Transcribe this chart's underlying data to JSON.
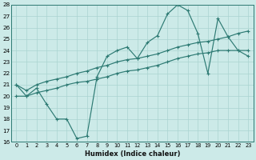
{
  "xlabel": "Humidex (Indice chaleur)",
  "xlim": [
    -0.5,
    23.5
  ],
  "ylim": [
    16,
    28
  ],
  "yticks": [
    16,
    17,
    18,
    19,
    20,
    21,
    22,
    23,
    24,
    25,
    26,
    27,
    28
  ],
  "xticks": [
    0,
    1,
    2,
    3,
    4,
    5,
    6,
    7,
    8,
    9,
    10,
    11,
    12,
    13,
    14,
    15,
    16,
    17,
    18,
    19,
    20,
    21,
    22,
    23
  ],
  "bg_color": "#cceae8",
  "line_color": "#2d7a73",
  "grid_color": "#aad4d0",
  "series_max": [
    21.0,
    20.0,
    20.7,
    19.3,
    18.0,
    18.0,
    16.3,
    16.5,
    21.7,
    23.5,
    24.0,
    24.3,
    23.3,
    24.7,
    25.3,
    27.2,
    28.0,
    27.5,
    25.5,
    22.0,
    26.8,
    25.2,
    24.0,
    23.5
  ],
  "series_mean": [
    21.0,
    20.5,
    21.0,
    21.3,
    21.5,
    21.7,
    22.0,
    22.2,
    22.5,
    22.7,
    23.0,
    23.2,
    23.3,
    23.5,
    23.7,
    24.0,
    24.3,
    24.5,
    24.7,
    24.8,
    25.0,
    25.2,
    25.5,
    25.7
  ],
  "series_min": [
    20.0,
    20.0,
    20.3,
    20.5,
    20.7,
    21.0,
    21.2,
    21.3,
    21.5,
    21.7,
    22.0,
    22.2,
    22.3,
    22.5,
    22.7,
    23.0,
    23.3,
    23.5,
    23.7,
    23.8,
    24.0,
    24.0,
    24.0,
    24.0
  ]
}
